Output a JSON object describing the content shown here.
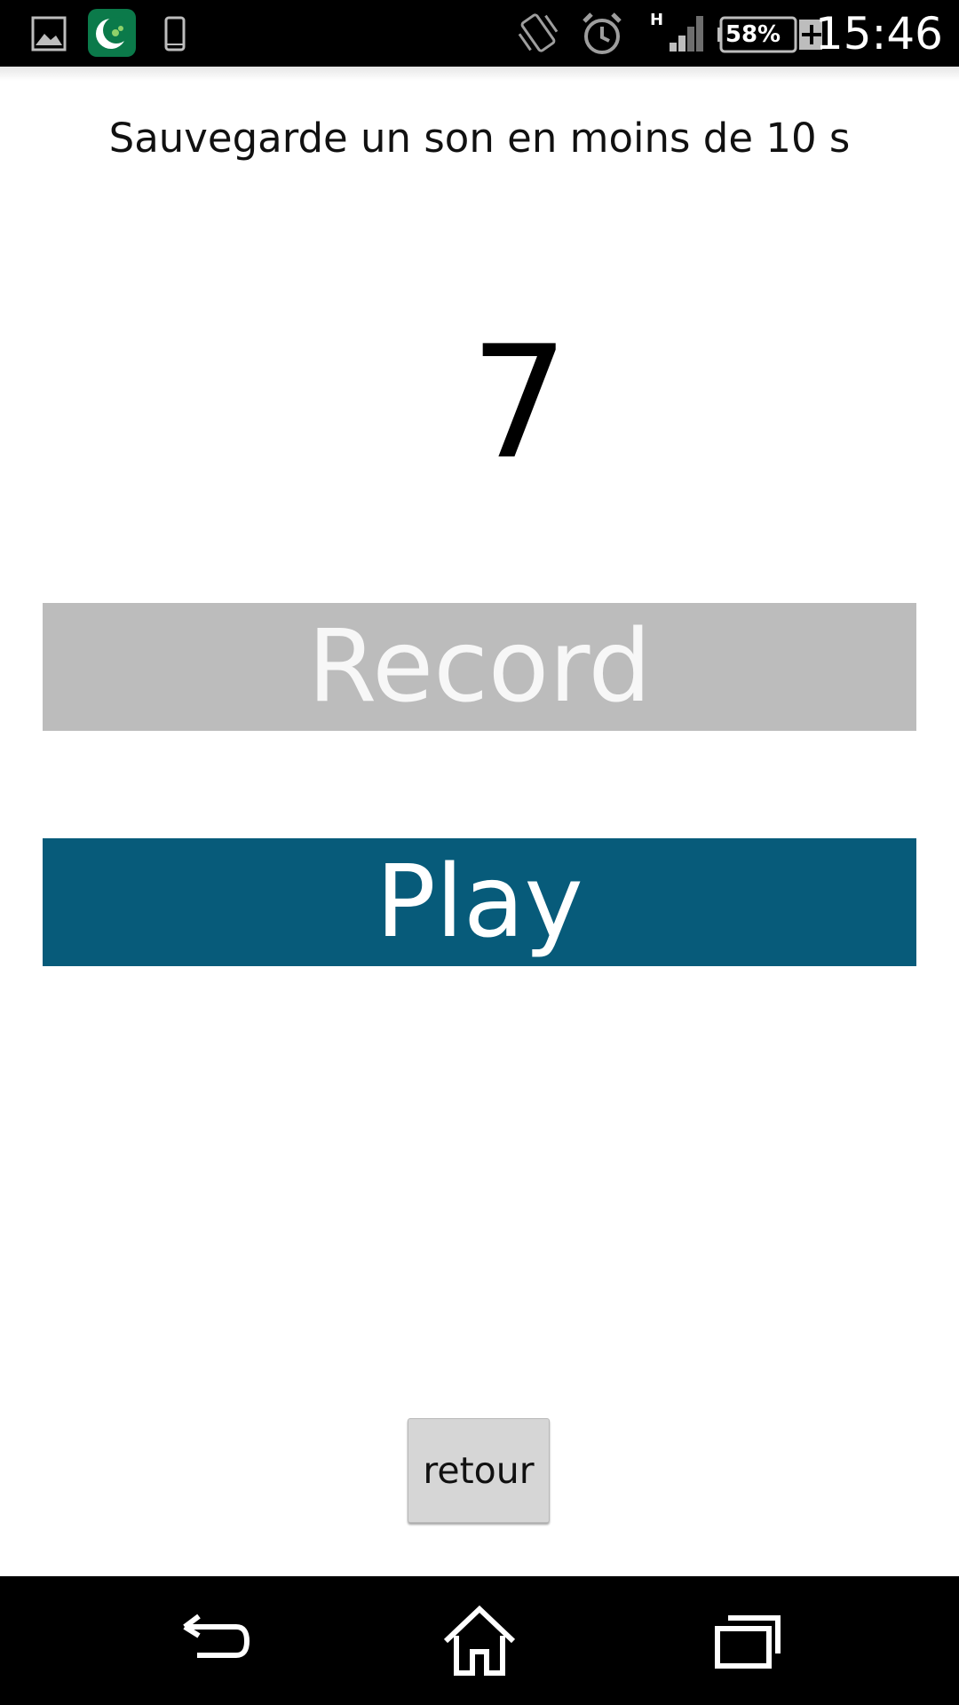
{
  "status_bar": {
    "time": "15:46",
    "battery_percent": "58%",
    "network_type": "H",
    "icons": [
      "gallery-icon",
      "app-notification-icon",
      "phone-icon",
      "vibrate-icon",
      "alarm-icon",
      "signal-icon",
      "battery-charging-icon"
    ]
  },
  "screen": {
    "title": "Sauvegarde un son en moins de 10 s",
    "countdown": "7",
    "record_label": "Record",
    "play_label": "Play",
    "back_label": "retour"
  },
  "nav_bar": {
    "icons": [
      "back-icon",
      "home-icon",
      "recent-apps-icon"
    ]
  },
  "colors": {
    "record_button": "#bcbcbc",
    "play_button": "#075b7a",
    "app_icon": "#0b7a4a"
  }
}
